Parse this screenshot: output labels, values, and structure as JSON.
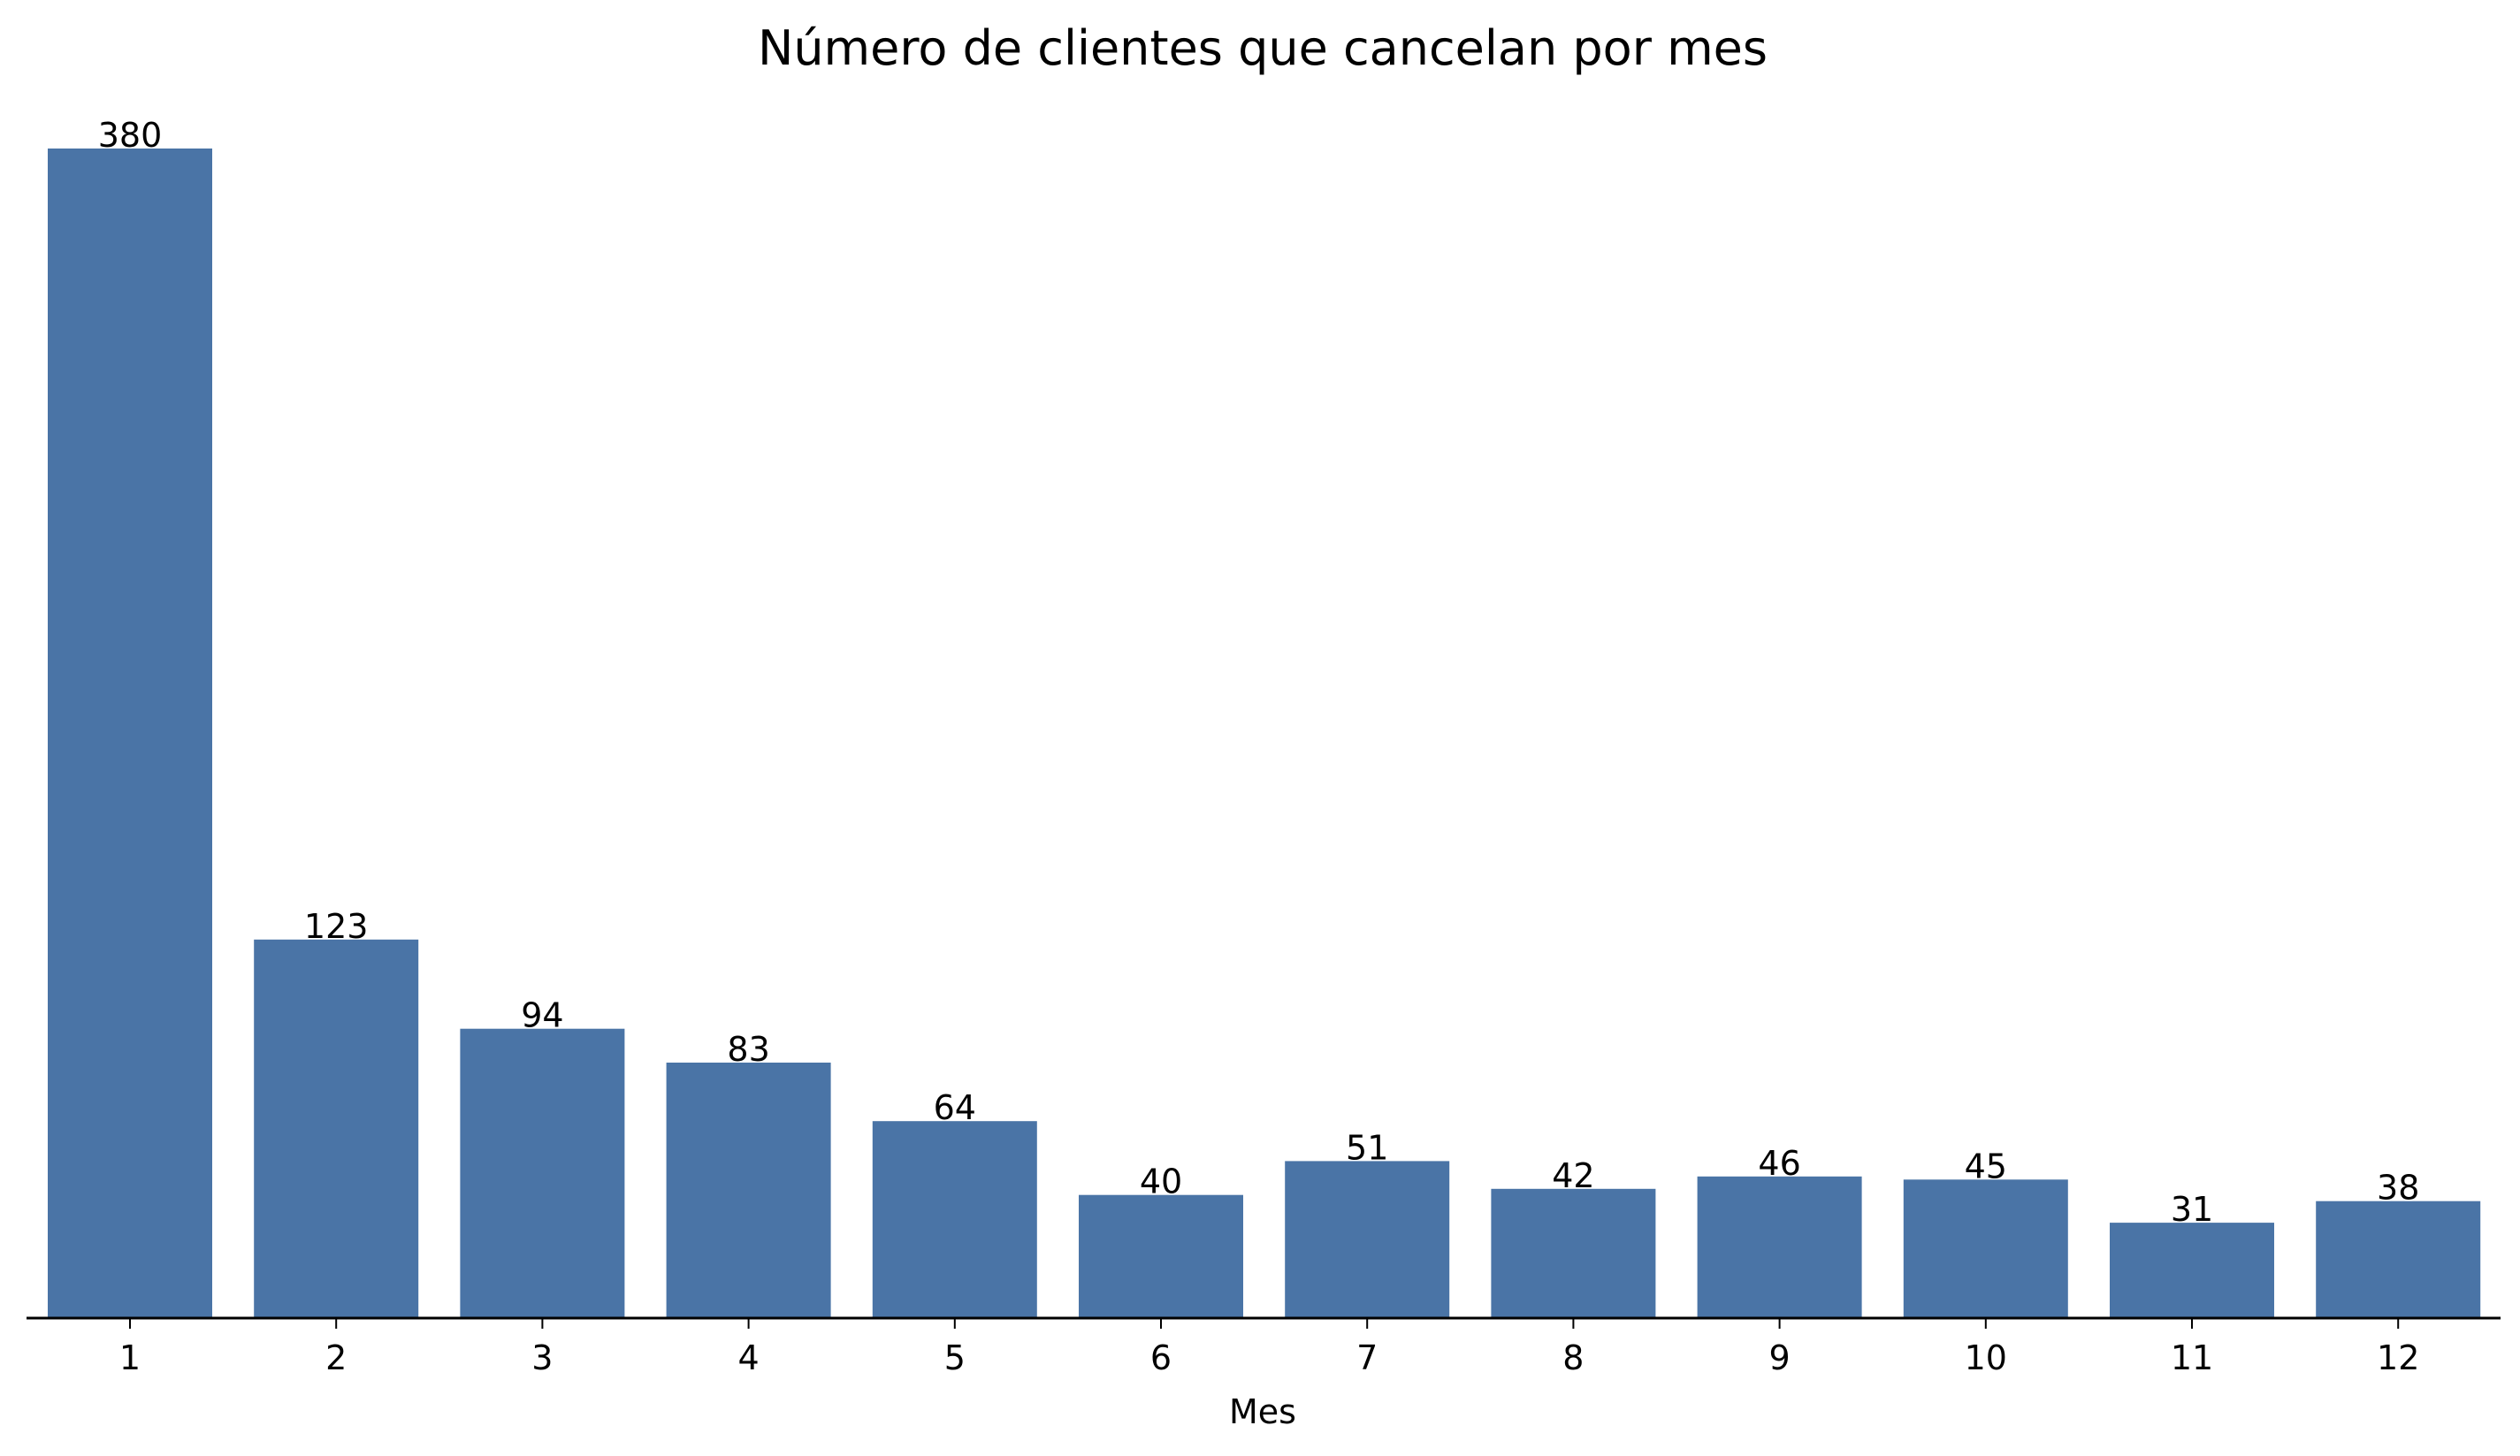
{
  "chart_data": {
    "type": "bar",
    "title": "Número de clientes que cancelan por mes",
    "xlabel": "Mes",
    "ylabel": "",
    "categories": [
      "1",
      "2",
      "3",
      "4",
      "5",
      "6",
      "7",
      "8",
      "9",
      "10",
      "11",
      "12"
    ],
    "values": [
      380,
      123,
      94,
      83,
      64,
      40,
      51,
      42,
      46,
      45,
      31,
      38
    ],
    "ylim": [
      0,
      380
    ],
    "grid": false,
    "legend": "none",
    "show_y_axis": false,
    "bar_color": "#4a74a6",
    "axis_color": "#000000"
  }
}
